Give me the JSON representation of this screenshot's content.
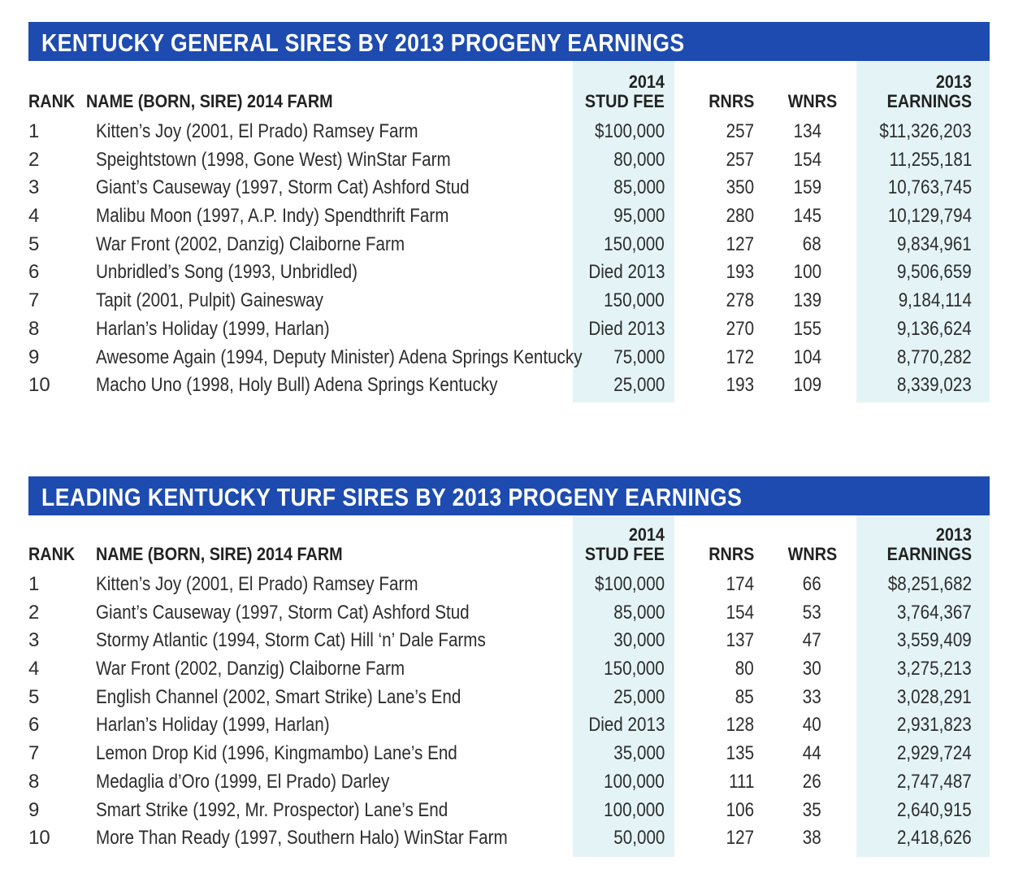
{
  "tables": [
    {
      "title": "KENTUCKY GENERAL SIRES BY 2013 PROGENY EARNINGS",
      "headers": {
        "rank": "RANK",
        "name": "NAME (BORN, SIRE) 2014 FARM",
        "fee_top": "2014",
        "fee_bottom": "STUD FEE",
        "rnrs": "RNRS",
        "wnrs": "WNRS",
        "earn_top": "2013",
        "earn_bottom": "EARNINGS"
      },
      "rows": [
        {
          "rank": "1",
          "name": "Kitten’s Joy (2001, El Prado) Ramsey Farm",
          "fee": "$100,000",
          "rnrs": "257",
          "wnrs": "134",
          "earnings": "$11,326,203"
        },
        {
          "rank": "2",
          "name": "Speightstown (1998, Gone West) WinStar Farm",
          "fee": "80,000",
          "rnrs": "257",
          "wnrs": "154",
          "earnings": "11,255,181"
        },
        {
          "rank": "3",
          "name": "Giant’s Causeway (1997, Storm Cat) Ashford Stud",
          "fee": "85,000",
          "rnrs": "350",
          "wnrs": "159",
          "earnings": "10,763,745"
        },
        {
          "rank": "4",
          "name": "Malibu Moon (1997, A.P. Indy) Spendthrift Farm",
          "fee": "95,000",
          "rnrs": "280",
          "wnrs": "145",
          "earnings": "10,129,794"
        },
        {
          "rank": "5",
          "name": "War Front (2002, Danzig) Claiborne Farm",
          "fee": "150,000",
          "rnrs": "127",
          "wnrs": "68",
          "earnings": "9,834,961"
        },
        {
          "rank": "6",
          "name": "Unbridled’s Song (1993, Unbridled)",
          "fee": "Died 2013",
          "rnrs": "193",
          "wnrs": "100",
          "earnings": "9,506,659"
        },
        {
          "rank": "7",
          "name": "Tapit (2001, Pulpit) Gainesway",
          "fee": "150,000",
          "rnrs": "278",
          "wnrs": "139",
          "earnings": "9,184,114"
        },
        {
          "rank": "8",
          "name": "Harlan’s Holiday (1999, Harlan)",
          "fee": "Died 2013",
          "rnrs": "270",
          "wnrs": "155",
          "earnings": "9,136,624"
        },
        {
          "rank": "9",
          "name": "Awesome Again (1994, Deputy Minister) Adena Springs Kentucky",
          "fee": "75,000",
          "rnrs": "172",
          "wnrs": "104",
          "earnings": "8,770,282"
        },
        {
          "rank": "10",
          "name": "Macho Uno (1998, Holy Bull) Adena Springs Kentucky",
          "fee": "25,000",
          "rnrs": "193",
          "wnrs": "109",
          "earnings": "8,339,023"
        }
      ]
    },
    {
      "title": "LEADING KENTUCKY TURF SIRES BY 2013 PROGENY EARNINGS",
      "headers": {
        "rank": "RANK",
        "name": "NAME (BORN, SIRE) 2014 FARM",
        "fee_top": "2014",
        "fee_bottom": "STUD FEE",
        "rnrs": "RNRS",
        "wnrs": "WNRS",
        "earn_top": "2013",
        "earn_bottom": "EARNINGS"
      },
      "rows": [
        {
          "rank": "1",
          "name": "Kitten’s Joy (2001, El Prado) Ramsey Farm",
          "fee": "$100,000",
          "rnrs": "174",
          "wnrs": "66",
          "earnings": "$8,251,682"
        },
        {
          "rank": "2",
          "name": "Giant’s Causeway (1997, Storm Cat) Ashford Stud",
          "fee": "85,000",
          "rnrs": "154",
          "wnrs": "53",
          "earnings": "3,764,367"
        },
        {
          "rank": "3",
          "name": "Stormy Atlantic (1994, Storm Cat) Hill ‘n’ Dale Farms",
          "fee": "30,000",
          "rnrs": "137",
          "wnrs": "47",
          "earnings": "3,559,409"
        },
        {
          "rank": "4",
          "name": "War Front (2002, Danzig) Claiborne Farm",
          "fee": "150,000",
          "rnrs": "80",
          "wnrs": "30",
          "earnings": "3,275,213"
        },
        {
          "rank": "5",
          "name": "English Channel (2002, Smart Strike) Lane’s End",
          "fee": "25,000",
          "rnrs": "85",
          "wnrs": "33",
          "earnings": "3,028,291"
        },
        {
          "rank": "6",
          "name": "Harlan’s Holiday (1999, Harlan)",
          "fee": "Died 2013",
          "rnrs": "128",
          "wnrs": "40",
          "earnings": "2,931,823"
        },
        {
          "rank": "7",
          "name": "Lemon Drop Kid (1996, Kingmambo) Lane’s End",
          "fee": "35,000",
          "rnrs": "135",
          "wnrs": "44",
          "earnings": "2,929,724"
        },
        {
          "rank": "8",
          "name": "Medaglia d’Oro (1999, El Prado) Darley",
          "fee": "100,000",
          "rnrs": "111",
          "wnrs": "26",
          "earnings": "2,747,487"
        },
        {
          "rank": "9",
          "name": "Smart Strike (1992, Mr. Prospector) Lane’s End",
          "fee": "100,000",
          "rnrs": "106",
          "wnrs": "35",
          "earnings": "2,640,915"
        },
        {
          "rank": "10",
          "name": "More Than Ready (1997, Southern Halo) WinStar Farm",
          "fee": "50,000",
          "rnrs": "127",
          "wnrs": "38",
          "earnings": "2,418,626"
        }
      ]
    }
  ]
}
